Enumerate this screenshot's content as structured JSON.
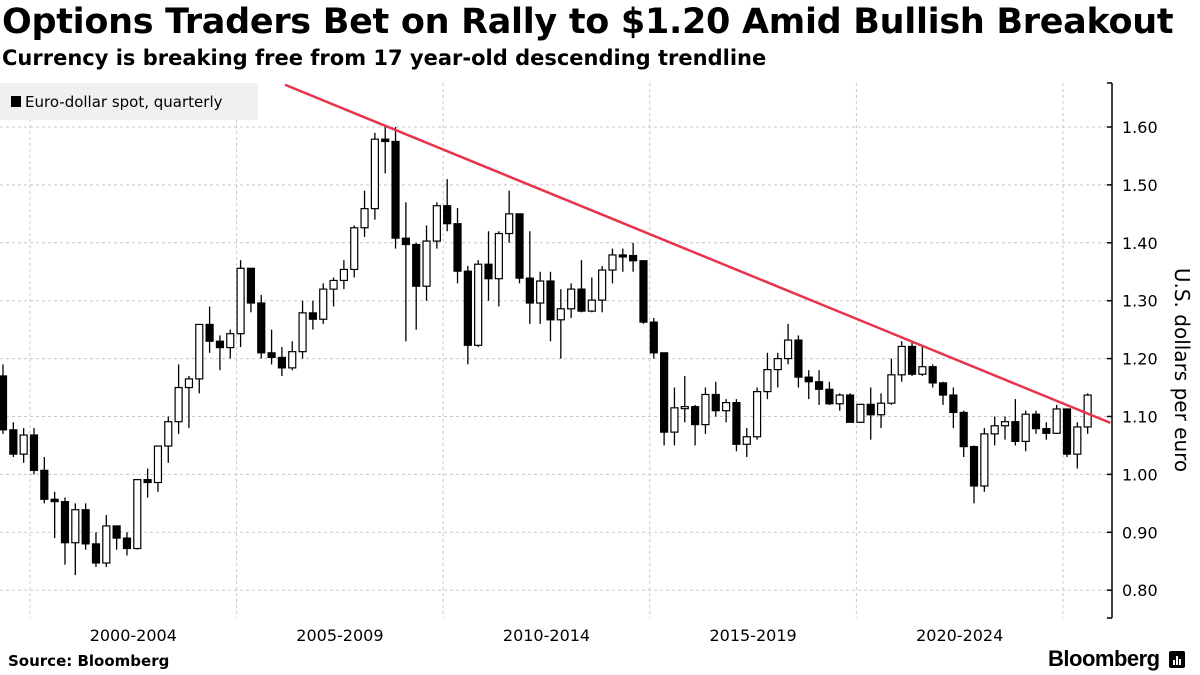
{
  "header": {
    "title": "Options Traders Bet on Rally to $1.20 Amid Bullish Breakout",
    "subtitle": "Currency is breaking free from 17 year-old descending trendline"
  },
  "footer": {
    "source": "Source: Bloomberg",
    "logo": "Bloomberg"
  },
  "chart_data": {
    "type": "candlestick",
    "title": "Options Traders Bet on Rally to $1.20 Amid Bullish Breakout",
    "legend": [
      "Euro-dollar spot, quarterly"
    ],
    "legend_placement": "top-left",
    "ylabel": "U.S. dollars per euro",
    "ylim": [
      0.75,
      1.68
    ],
    "yticks": [
      "0.80",
      "0.90",
      "1.00",
      "1.10",
      "1.20",
      "1.30",
      "1.40",
      "1.50",
      "1.60"
    ],
    "xtick_labels": [
      "2000-2004",
      "2005-2009",
      "2010-2014",
      "2015-2019",
      "2020-2024"
    ],
    "start_quarter": "1999Q1",
    "close": [
      1.077,
      1.035,
      1.068,
      1.007,
      0.957,
      0.953,
      0.882,
      0.939,
      0.88,
      0.847,
      0.911,
      0.89,
      0.872,
      0.991,
      0.986,
      1.049,
      1.091,
      1.15,
      1.165,
      1.259,
      1.23,
      1.219,
      1.243,
      1.356,
      1.296,
      1.21,
      1.202,
      1.184,
      1.212,
      1.279,
      1.268,
      1.32,
      1.335,
      1.354,
      1.426,
      1.459,
      1.579,
      1.575,
      1.408,
      1.397,
      1.325,
      1.403,
      1.464,
      1.433,
      1.351,
      1.223,
      1.363,
      1.338,
      1.416,
      1.45,
      1.339,
      1.296,
      1.334,
      1.267,
      1.286,
      1.32,
      1.282,
      1.301,
      1.353,
      1.379,
      1.378,
      1.369,
      1.263,
      1.21,
      1.073,
      1.115,
      1.117,
      1.086,
      1.138,
      1.11,
      1.124,
      1.052,
      1.065,
      1.143,
      1.181,
      1.2,
      1.232,
      1.168,
      1.16,
      1.147,
      1.122,
      1.137,
      1.09,
      1.121,
      1.103,
      1.123,
      1.172,
      1.221,
      1.173,
      1.186,
      1.158,
      1.137,
      1.107,
      1.048,
      0.98,
      1.07,
      1.084,
      1.091,
      1.057,
      1.104,
      1.079,
      1.071,
      1.113,
      1.035,
      1.082,
      1.137
    ],
    "first_open": 1.17,
    "high": [
      1.19,
      1.09,
      1.08,
      1.08,
      1.03,
      0.97,
      0.96,
      0.95,
      0.95,
      0.9,
      0.93,
      0.91,
      0.9,
      0.99,
      1.01,
      1.05,
      1.1,
      1.19,
      1.17,
      1.26,
      1.29,
      1.24,
      1.25,
      1.37,
      1.35,
      1.31,
      1.25,
      1.22,
      1.23,
      1.3,
      1.3,
      1.33,
      1.34,
      1.37,
      1.43,
      1.49,
      1.59,
      1.6,
      1.6,
      1.47,
      1.4,
      1.43,
      1.47,
      1.51,
      1.46,
      1.36,
      1.37,
      1.42,
      1.42,
      1.49,
      1.45,
      1.42,
      1.35,
      1.35,
      1.32,
      1.33,
      1.37,
      1.34,
      1.36,
      1.39,
      1.39,
      1.4,
      1.37,
      1.27,
      1.21,
      1.15,
      1.17,
      1.12,
      1.15,
      1.16,
      1.13,
      1.13,
      1.08,
      1.15,
      1.21,
      1.21,
      1.26,
      1.24,
      1.18,
      1.18,
      1.16,
      1.14,
      1.14,
      1.12,
      1.15,
      1.14,
      1.2,
      1.23,
      1.23,
      1.22,
      1.19,
      1.16,
      1.15,
      1.11,
      1.05,
      1.08,
      1.1,
      1.1,
      1.13,
      1.11,
      1.11,
      1.09,
      1.12,
      1.11,
      1.09,
      1.14
    ],
    "low": [
      1.07,
      1.03,
      1.02,
      1.0,
      0.95,
      0.89,
      0.844,
      0.826,
      0.87,
      0.84,
      0.84,
      0.87,
      0.86,
      0.87,
      0.96,
      0.97,
      1.02,
      1.07,
      1.08,
      1.14,
      1.21,
      1.18,
      1.2,
      1.22,
      1.28,
      1.2,
      1.19,
      1.17,
      1.18,
      1.2,
      1.25,
      1.26,
      1.29,
      1.32,
      1.34,
      1.41,
      1.44,
      1.52,
      1.39,
      1.23,
      1.25,
      1.3,
      1.39,
      1.42,
      1.33,
      1.19,
      1.22,
      1.3,
      1.29,
      1.4,
      1.33,
      1.26,
      1.26,
      1.23,
      1.2,
      1.27,
      1.28,
      1.28,
      1.28,
      1.33,
      1.35,
      1.35,
      1.26,
      1.2,
      1.05,
      1.05,
      1.09,
      1.05,
      1.07,
      1.1,
      1.09,
      1.04,
      1.03,
      1.06,
      1.13,
      1.15,
      1.19,
      1.15,
      1.13,
      1.12,
      1.12,
      1.11,
      1.09,
      1.09,
      1.06,
      1.08,
      1.12,
      1.16,
      1.17,
      1.17,
      1.15,
      1.12,
      1.08,
      1.03,
      0.95,
      0.97,
      1.05,
      1.06,
      1.05,
      1.04,
      1.07,
      1.06,
      1.07,
      1.03,
      1.01,
      1.07
    ],
    "trendline": {
      "color": "#e8334a",
      "points": [
        [
          27.3,
          1.673
        ],
        [
          107.2,
          1.089
        ]
      ]
    }
  }
}
